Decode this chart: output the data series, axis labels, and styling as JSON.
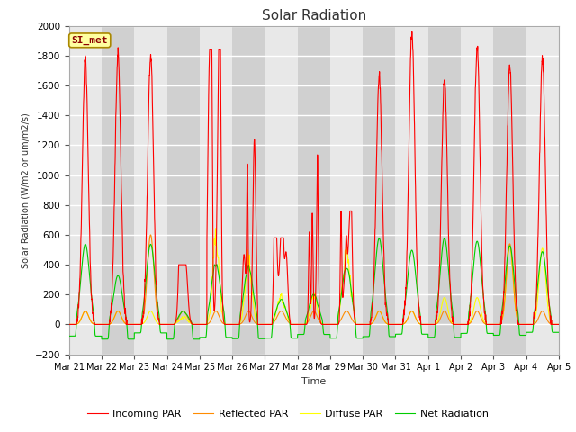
{
  "title": "Solar Radiation",
  "ylabel": "Solar Radiation (W/m2 or um/m2/s)",
  "xlabel": "Time",
  "ylim": [
    -200,
    2000
  ],
  "yticks": [
    -200,
    0,
    200,
    400,
    600,
    800,
    1000,
    1200,
    1400,
    1600,
    1800,
    2000
  ],
  "station_label": "SI_met",
  "fig_bg_color": "#ffffff",
  "plot_bg_color": "#e8e8e8",
  "alt_band_color": "#d0d0d0",
  "grid_color": "#ffffff",
  "series": {
    "incoming_par": {
      "color": "#ff0000",
      "label": "Incoming PAR",
      "lw": 0.8
    },
    "reflected_par": {
      "color": "#ff8c00",
      "label": "Reflected PAR",
      "lw": 0.8
    },
    "diffuse_par": {
      "color": "#ffff00",
      "label": "Diffuse PAR",
      "lw": 0.8
    },
    "net_radiation": {
      "color": "#00cc00",
      "label": "Net Radiation",
      "lw": 0.8
    }
  },
  "date_labels": [
    "Mar 21",
    "Mar 22",
    "Mar 23",
    "Mar 24",
    "Mar 25",
    "Mar 26",
    "Mar 27",
    "Mar 28",
    "Mar 29",
    "Mar 30",
    "Mar 31",
    "Apr 1",
    "Apr 2",
    "Apr 3",
    "Apr 4",
    "Apr 5"
  ],
  "num_days": 15,
  "pts_per_day": 288
}
